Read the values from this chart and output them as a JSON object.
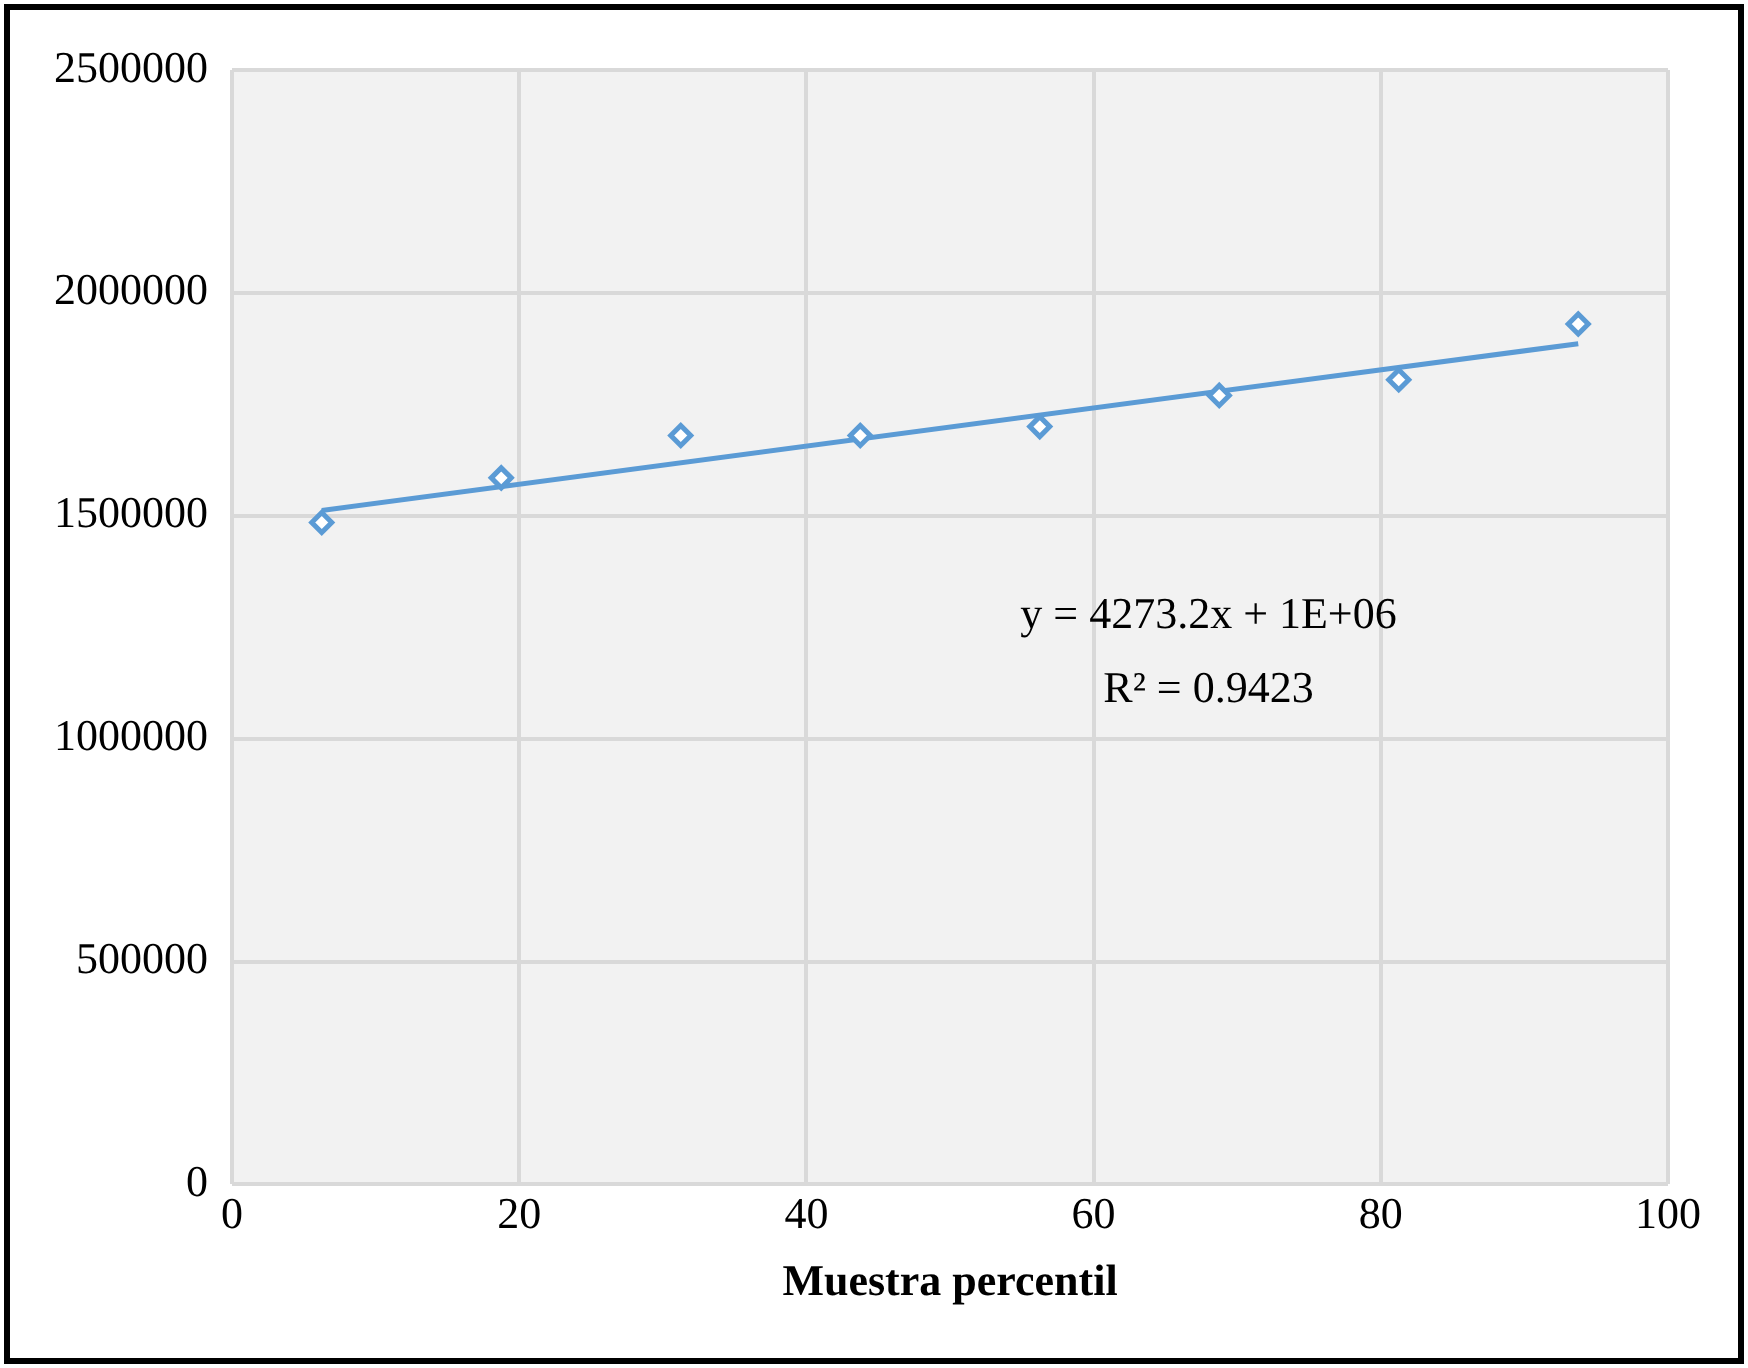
{
  "chart_data": {
    "type": "scatter",
    "xlabel": "Muestra percentil",
    "x": [
      6.25,
      18.75,
      31.25,
      43.75,
      56.25,
      68.75,
      81.25,
      93.75
    ],
    "series": [
      {
        "color": "#5b9bd5",
        "marker": "diamond",
        "values": [
          1485000,
          1585000,
          1680000,
          1680000,
          1700000,
          1770000,
          1805000,
          1930000
        ]
      },
      {
        "type": "line",
        "color": "#5b9bd5",
        "marker": "none",
        "x": [
          6.25,
          93.75
        ],
        "values": [
          1512000,
          1886000
        ]
      }
    ],
    "annotations": [
      "y = 4273.2x + 1E+06",
      "R² = 0.9423"
    ],
    "xlim": [
      0,
      100
    ],
    "xticks": [
      0,
      20,
      40,
      60,
      80,
      100
    ],
    "ylim": [
      0,
      2500000
    ],
    "yticks": [
      0,
      500000,
      1000000,
      1500000,
      2000000,
      2500000
    ],
    "grid": true,
    "legend": false
  }
}
